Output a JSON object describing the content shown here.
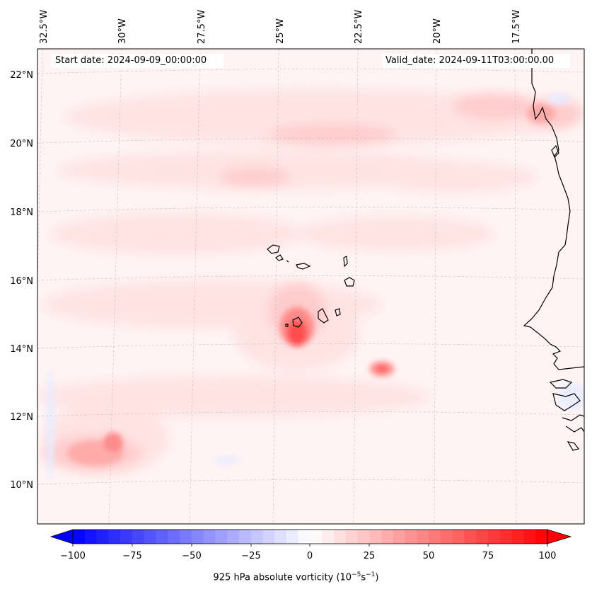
{
  "info": {
    "start_date": "Start date: 2024-09-09_00:00:00",
    "valid_date": "Valid_date: 2024-09-11T03:00:00.00"
  },
  "lon_labels": [
    "32.5°W",
    "30°W",
    "27.5°W",
    "25°W",
    "22.5°W",
    "20°W",
    "17.5°W"
  ],
  "lat_labels": [
    "22°N",
    "20°N",
    "18°N",
    "16°N",
    "14°N",
    "12°N",
    "10°N"
  ],
  "colorbar": {
    "tick_labels": [
      "−100",
      "−75",
      "−50",
      "−25",
      "0",
      "25",
      "50",
      "75",
      "100"
    ],
    "title_main": "925 hPa absolute vorticity (10",
    "title_exp1": "−5",
    "title_mid": "s",
    "title_exp2": "−1",
    "title_end": ")",
    "negative_color": "#0000ff",
    "positive_color": "#ff0000"
  }
}
